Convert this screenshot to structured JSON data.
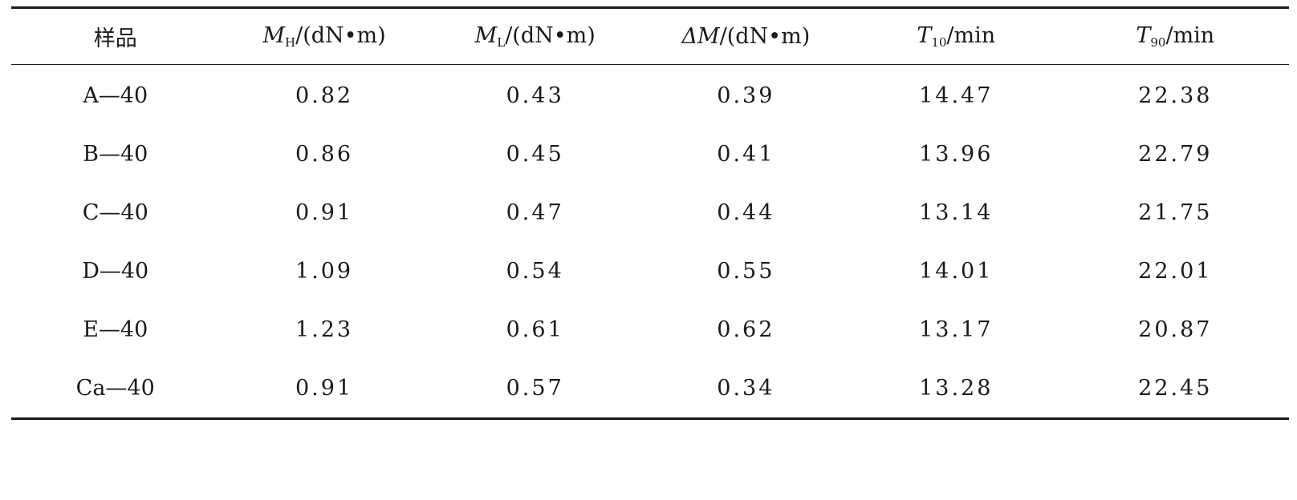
{
  "table": {
    "headers": [
      {
        "var": "",
        "sub": "",
        "unit": "样品"
      },
      {
        "var": "M",
        "sub": "H",
        "unit": "/(dN•m)"
      },
      {
        "var": "M",
        "sub": "L",
        "unit": "/(dN•m)"
      },
      {
        "var": "ΔM",
        "sub": "",
        "unit": "/(dN•m)"
      },
      {
        "var": "T",
        "sub": "10",
        "unit": "/min"
      },
      {
        "var": "T",
        "sub": "90",
        "unit": "/min"
      }
    ],
    "rows": [
      [
        "A—40",
        "0.82",
        "0.43",
        "0.39",
        "14.47",
        "22.38"
      ],
      [
        "B—40",
        "0.86",
        "0.45",
        "0.41",
        "13.96",
        "22.79"
      ],
      [
        "C—40",
        "0.91",
        "0.47",
        "0.44",
        "13.14",
        "21.75"
      ],
      [
        "D—40",
        "1.09",
        "0.54",
        "0.55",
        "14.01",
        "22.01"
      ],
      [
        "E—40",
        "1.23",
        "0.61",
        "0.62",
        "13.17",
        "20.87"
      ],
      [
        "Ca—40",
        "0.91",
        "0.57",
        "0.34",
        "13.28",
        "22.45"
      ]
    ]
  }
}
